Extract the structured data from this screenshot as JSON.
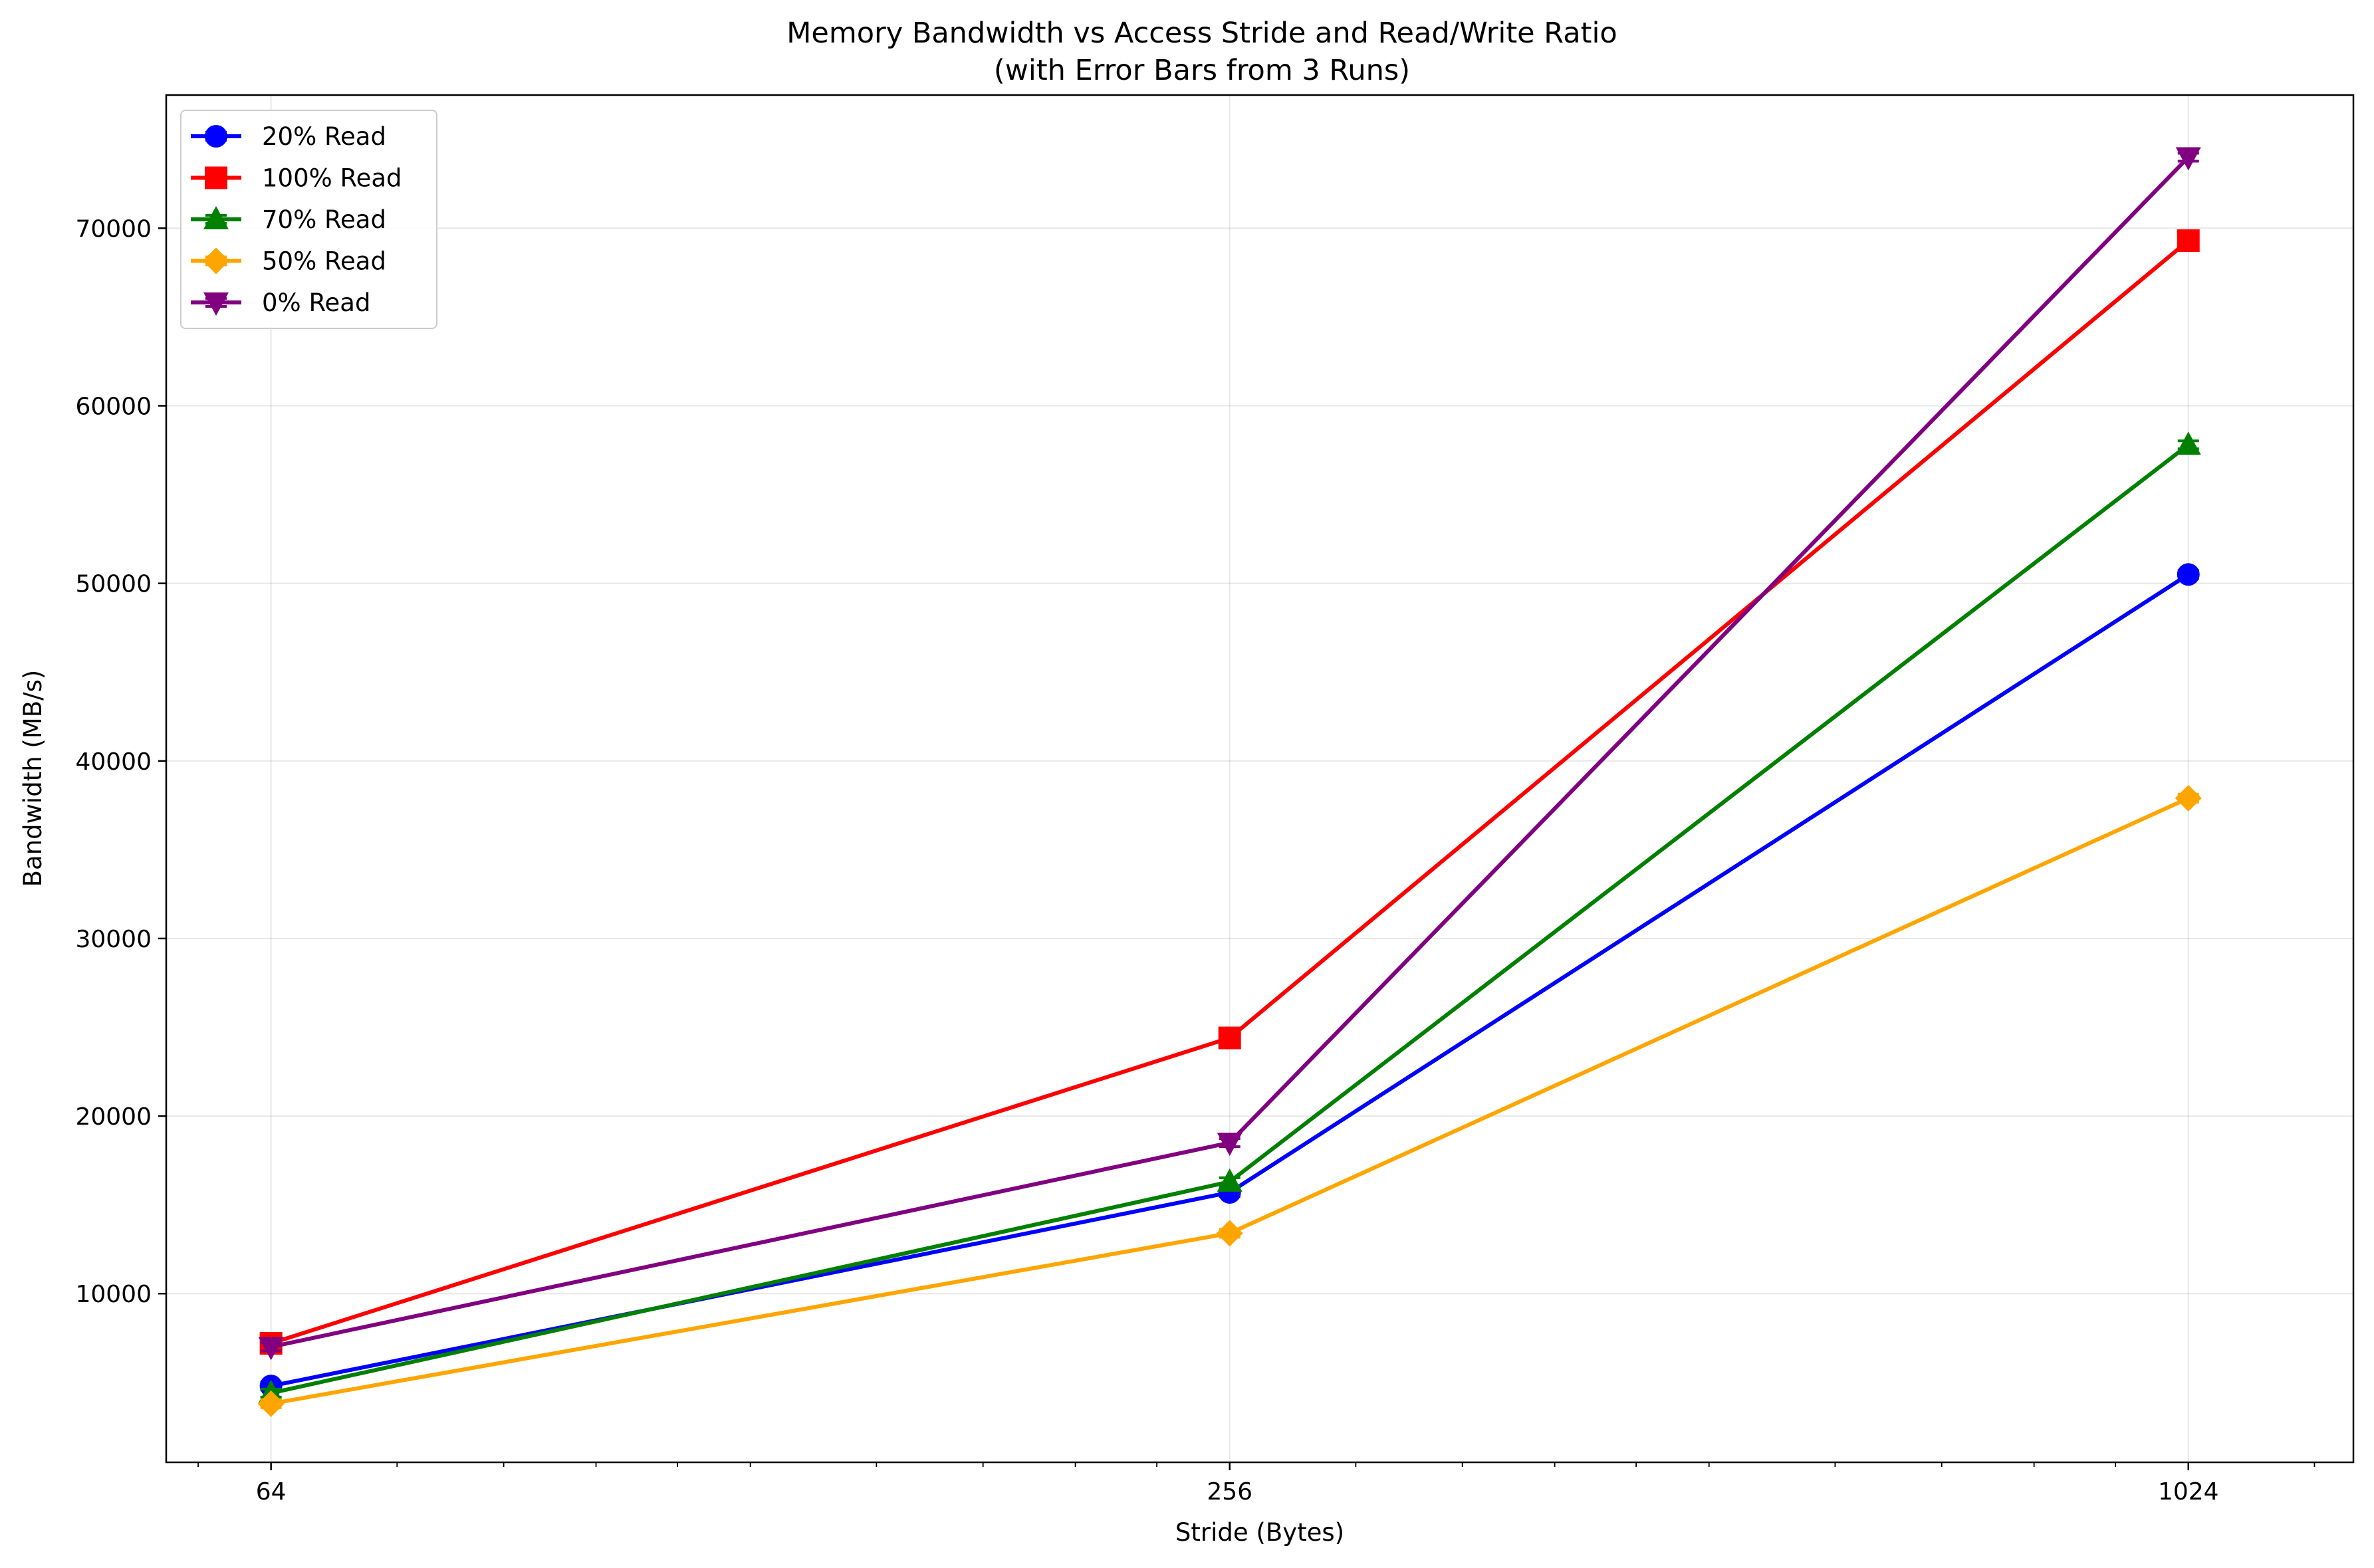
{
  "chart_data": {
    "type": "line",
    "title": "Memory Bandwidth vs Access Stride and Read/Write Ratio",
    "subtitle": "(with Error Bars from 3 Runs)",
    "xlabel": "Stride (Bytes)",
    "ylabel": "Bandwidth (MB/s)",
    "x_scale": "log2",
    "x": [
      64,
      256,
      1024
    ],
    "x_tick_labels": [
      "64",
      "256",
      "1024"
    ],
    "xlim": [
      55,
      1300
    ],
    "ylim": [
      500,
      77500
    ],
    "y_ticks": [
      10000,
      20000,
      30000,
      40000,
      50000,
      60000,
      70000
    ],
    "y_tick_labels": [
      "10000",
      "20000",
      "30000",
      "40000",
      "50000",
      "60000",
      "70000"
    ],
    "grid": true,
    "legend_position": "upper-left",
    "series": [
      {
        "name": "20% Read",
        "color": "#0000ff",
        "marker": "circle",
        "values": [
          4800,
          15700,
          50500
        ]
      },
      {
        "name": "100% Read",
        "color": "#ff0000",
        "marker": "square",
        "values": [
          7200,
          24400,
          69300
        ]
      },
      {
        "name": "70% Read",
        "color": "#008000",
        "marker": "triangle-up",
        "values": [
          4400,
          16300,
          57800
        ]
      },
      {
        "name": "50% Read",
        "color": "#ffa500",
        "marker": "diamond",
        "values": [
          3800,
          13400,
          37900
        ]
      },
      {
        "name": "0% Read",
        "color": "#800080",
        "marker": "triangle-down",
        "values": [
          7000,
          18500,
          74000
        ]
      }
    ]
  }
}
